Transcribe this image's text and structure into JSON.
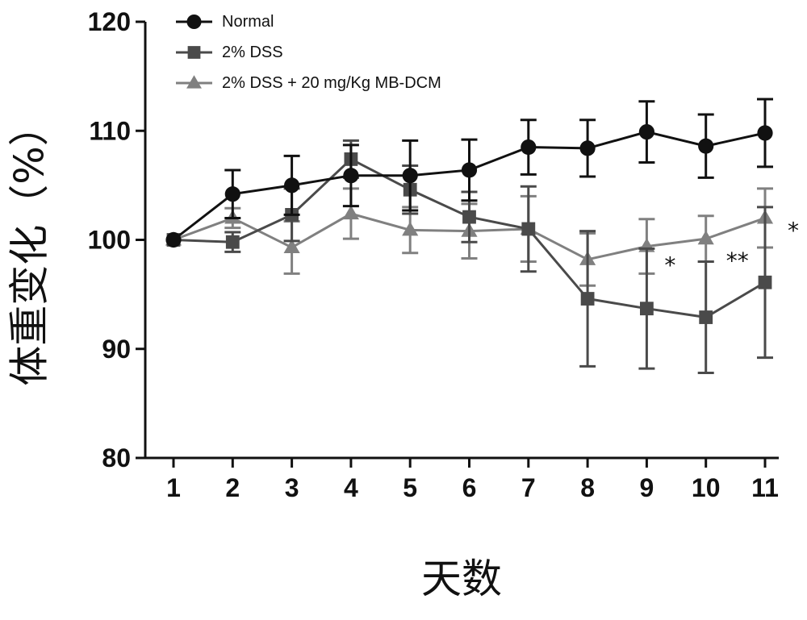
{
  "chart_data": {
    "type": "line",
    "title": "",
    "xlabel": "天数",
    "ylabel": "体重变化（%）",
    "x": [
      1,
      2,
      3,
      4,
      5,
      6,
      7,
      8,
      9,
      10,
      11
    ],
    "xticks": [
      "1",
      "2",
      "3",
      "4",
      "5",
      "6",
      "7",
      "8",
      "9",
      "10",
      "11"
    ],
    "ylim": [
      80,
      120
    ],
    "yticks": [
      "80",
      "90",
      "100",
      "110",
      "120"
    ],
    "legend_position": "top-left",
    "series": [
      {
        "name": "Normal",
        "marker": "circle",
        "color": "#111111",
        "values": [
          100,
          104.2,
          105.0,
          105.9,
          105.9,
          106.4,
          108.5,
          108.4,
          109.9,
          108.6,
          109.8
        ],
        "errors": [
          0,
          2.2,
          2.7,
          2.8,
          3.2,
          2.8,
          2.5,
          2.6,
          2.8,
          2.9,
          3.1
        ]
      },
      {
        "name": "2% DSS",
        "marker": "square",
        "color": "#4a4a4a",
        "values": [
          100,
          99.8,
          102.3,
          107.4,
          104.6,
          102.1,
          101.0,
          94.6,
          93.7,
          92.9,
          96.1
        ],
        "errors": [
          0,
          0.9,
          2.4,
          1.7,
          2.2,
          2.3,
          3.9,
          6.2,
          5.5,
          5.1,
          6.9
        ]
      },
      {
        "name": "2% DSS + 20 mg/Kg MB-DCM",
        "marker": "triangle",
        "color": "#808080",
        "values": [
          100,
          102.0,
          99.3,
          102.4,
          100.9,
          100.8,
          101.0,
          98.2,
          99.4,
          100.1,
          102.0
        ],
        "errors": [
          0,
          0.9,
          2.4,
          2.3,
          2.1,
          2.5,
          3.0,
          2.4,
          2.5,
          2.1,
          2.7
        ]
      }
    ],
    "annotations": [
      {
        "text": "*",
        "x": 9,
        "y": 98.0
      },
      {
        "text": "**",
        "x": 10,
        "y": 98.4
      },
      {
        "text": "*",
        "x": 11,
        "y": 101.2
      }
    ]
  }
}
